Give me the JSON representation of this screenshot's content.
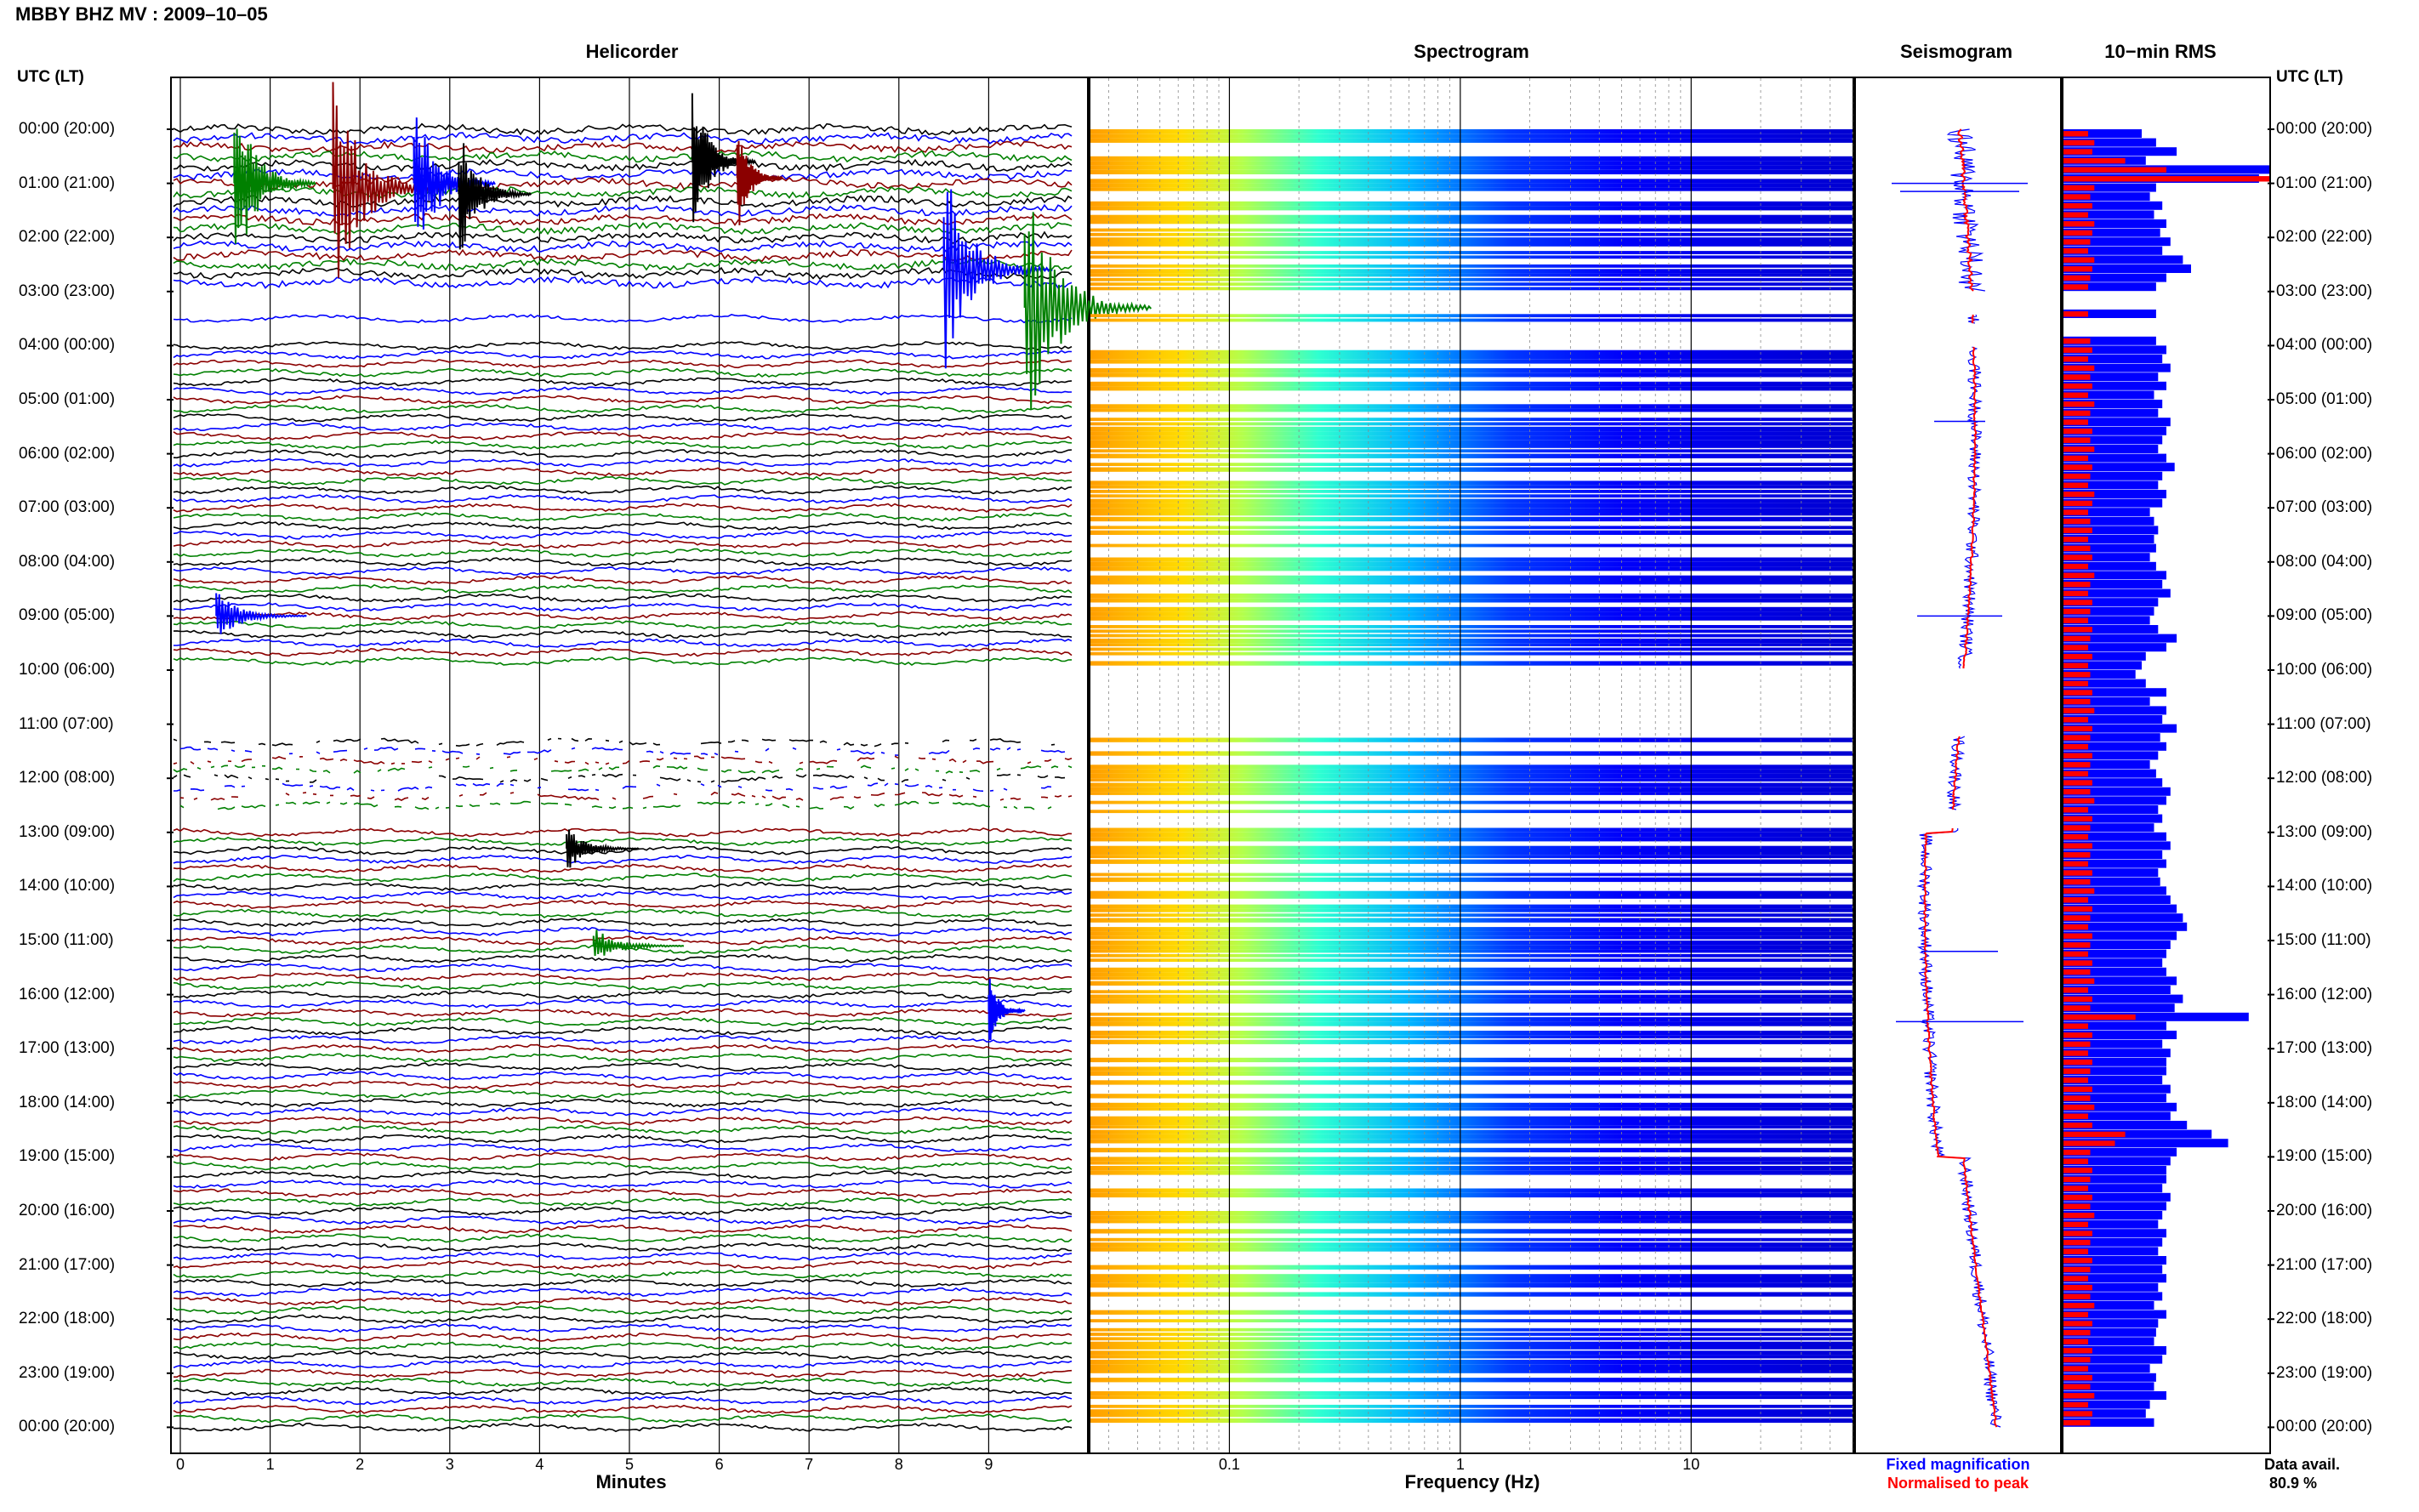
{
  "title": "MBBY BHZ MV : 2009–10–05",
  "timezone_label": "UTC (LT)",
  "panels": {
    "helicorder": "Helicorder",
    "spectrogram": "Spectrogram",
    "seismogram": "Seismogram",
    "rms": "10−min RMS"
  },
  "hour_labels": [
    "00:00 (20:00)",
    "01:00 (21:00)",
    "02:00 (22:00)",
    "03:00 (23:00)",
    "04:00 (00:00)",
    "05:00 (01:00)",
    "06:00 (02:00)",
    "07:00 (03:00)",
    "08:00 (04:00)",
    "09:00 (05:00)",
    "10:00 (06:00)",
    "11:00 (07:00)",
    "12:00 (08:00)",
    "13:00 (09:00)",
    "14:00 (10:00)",
    "15:00 (11:00)",
    "16:00 (12:00)",
    "17:00 (13:00)",
    "18:00 (14:00)",
    "19:00 (15:00)",
    "20:00 (16:00)",
    "21:00 (17:00)",
    "22:00 (18:00)",
    "23:00 (19:00)",
    "00:00 (20:00)"
  ],
  "helicorder_xticks": [
    "0",
    "1",
    "2",
    "3",
    "4",
    "5",
    "6",
    "7",
    "8",
    "9"
  ],
  "helicorder_xlabel": "Minutes",
  "spectrogram_xticks": [
    "0.1",
    "1",
    "10"
  ],
  "spectrogram_xlabel": "Frequency (Hz)",
  "legend": {
    "fixed": "Fixed magnification",
    "normalised": "Normalised to peak"
  },
  "availability": {
    "label": "Data avail.",
    "value": "80.9 %"
  },
  "colors": {
    "fixed": "#0000ff",
    "normalised": "#ff0000",
    "trace_cycle": [
      "#000000",
      "#0000ff",
      "#8b0000",
      "#008000"
    ]
  },
  "chart_data": {
    "type": "heatmap",
    "date": "2009-10-05",
    "station": "MBBY BHZ MV",
    "helicorder": {
      "type": "line",
      "x_range_minutes": [
        0,
        10
      ],
      "lines_per_hour": 6,
      "hours": 24
    },
    "spectrogram": {
      "type": "heatmap",
      "x_scale": "log",
      "x_range_hz": [
        0.025,
        50
      ],
      "colormap": "jet"
    },
    "data_gaps_hours": [
      [
        3.0,
        3.4
      ],
      [
        3.6,
        4.0
      ],
      [
        10.0,
        11.2
      ],
      [
        12.6,
        12.9
      ]
    ],
    "rms_10min": {
      "type": "bar",
      "series": [
        {
          "name": "Fixed magnification",
          "values": [
            0.38,
            0.45,
            0.55,
            0.4,
            1.0,
            0.95,
            0.45,
            0.42,
            0.48,
            0.44,
            0.5,
            0.47,
            0.52,
            0.48,
            0.58,
            0.62,
            0.5,
            0.45,
            0.0,
            0.0,
            0.45,
            0.0,
            0.0,
            0.45,
            0.5,
            0.48,
            0.52,
            0.46,
            0.5,
            0.44,
            0.48,
            0.46,
            0.52,
            0.5,
            0.48,
            0.46,
            0.5,
            0.54,
            0.48,
            0.46,
            0.5,
            0.48,
            0.42,
            0.44,
            0.46,
            0.44,
            0.45,
            0.42,
            0.45,
            0.5,
            0.48,
            0.52,
            0.46,
            0.44,
            0.42,
            0.46,
            0.55,
            0.5,
            0.4,
            0.38,
            0.35,
            0.4,
            0.5,
            0.42,
            0.5,
            0.48,
            0.55,
            0.47,
            0.5,
            0.46,
            0.42,
            0.45,
            0.48,
            0.52,
            0.5,
            0.46,
            0.48,
            0.44,
            0.5,
            0.52,
            0.48,
            0.5,
            0.46,
            0.47,
            0.5,
            0.52,
            0.55,
            0.58,
            0.6,
            0.55,
            0.52,
            0.5,
            0.48,
            0.5,
            0.55,
            0.52,
            0.58,
            0.54,
            0.9,
            0.5,
            0.55,
            0.48,
            0.52,
            0.5,
            0.5,
            0.48,
            0.52,
            0.5,
            0.55,
            0.52,
            0.6,
            0.72,
            0.8,
            0.55,
            0.52,
            0.5,
            0.5,
            0.48,
            0.52,
            0.5,
            0.48,
            0.46,
            0.5,
            0.48,
            0.46,
            0.5,
            0.48,
            0.5,
            0.46,
            0.48,
            0.44,
            0.5,
            0.46,
            0.45,
            0.44,
            0.5,
            0.48,
            0.42,
            0.45,
            0.44,
            0.5,
            0.42,
            0.4,
            0.44
          ]
        },
        {
          "name": "Normalised to peak",
          "values": [
            0.12,
            0.15,
            0.14,
            0.3,
            0.5,
            1.0,
            0.15,
            0.13,
            0.14,
            0.12,
            0.15,
            0.14,
            0.13,
            0.12,
            0.15,
            0.14,
            0.13,
            0.12,
            0.0,
            0.0,
            0.12,
            0.0,
            0.0,
            0.13,
            0.14,
            0.12,
            0.15,
            0.13,
            0.14,
            0.12,
            0.15,
            0.13,
            0.12,
            0.14,
            0.13,
            0.15,
            0.12,
            0.14,
            0.13,
            0.12,
            0.15,
            0.14,
            0.12,
            0.13,
            0.14,
            0.12,
            0.13,
            0.14,
            0.12,
            0.15,
            0.13,
            0.12,
            0.14,
            0.13,
            0.12,
            0.14,
            0.13,
            0.12,
            0.14,
            0.12,
            0.13,
            0.12,
            0.14,
            0.13,
            0.15,
            0.12,
            0.14,
            0.13,
            0.12,
            0.14,
            0.13,
            0.12,
            0.14,
            0.13,
            0.15,
            0.12,
            0.14,
            0.13,
            0.12,
            0.14,
            0.13,
            0.12,
            0.14,
            0.13,
            0.15,
            0.12,
            0.14,
            0.13,
            0.12,
            0.14,
            0.13,
            0.12,
            0.14,
            0.13,
            0.15,
            0.12,
            0.14,
            0.13,
            0.35,
            0.12,
            0.14,
            0.13,
            0.12,
            0.14,
            0.13,
            0.12,
            0.14,
            0.13,
            0.15,
            0.12,
            0.14,
            0.3,
            0.25,
            0.13,
            0.12,
            0.14,
            0.13,
            0.12,
            0.14,
            0.13,
            0.15,
            0.12,
            0.14,
            0.13,
            0.12,
            0.14,
            0.13,
            0.12,
            0.14,
            0.13,
            0.15,
            0.12,
            0.14,
            0.13,
            0.12,
            0.14,
            0.13,
            0.12,
            0.14,
            0.13,
            0.15,
            0.12,
            0.14,
            0.13
          ]
        }
      ]
    }
  }
}
